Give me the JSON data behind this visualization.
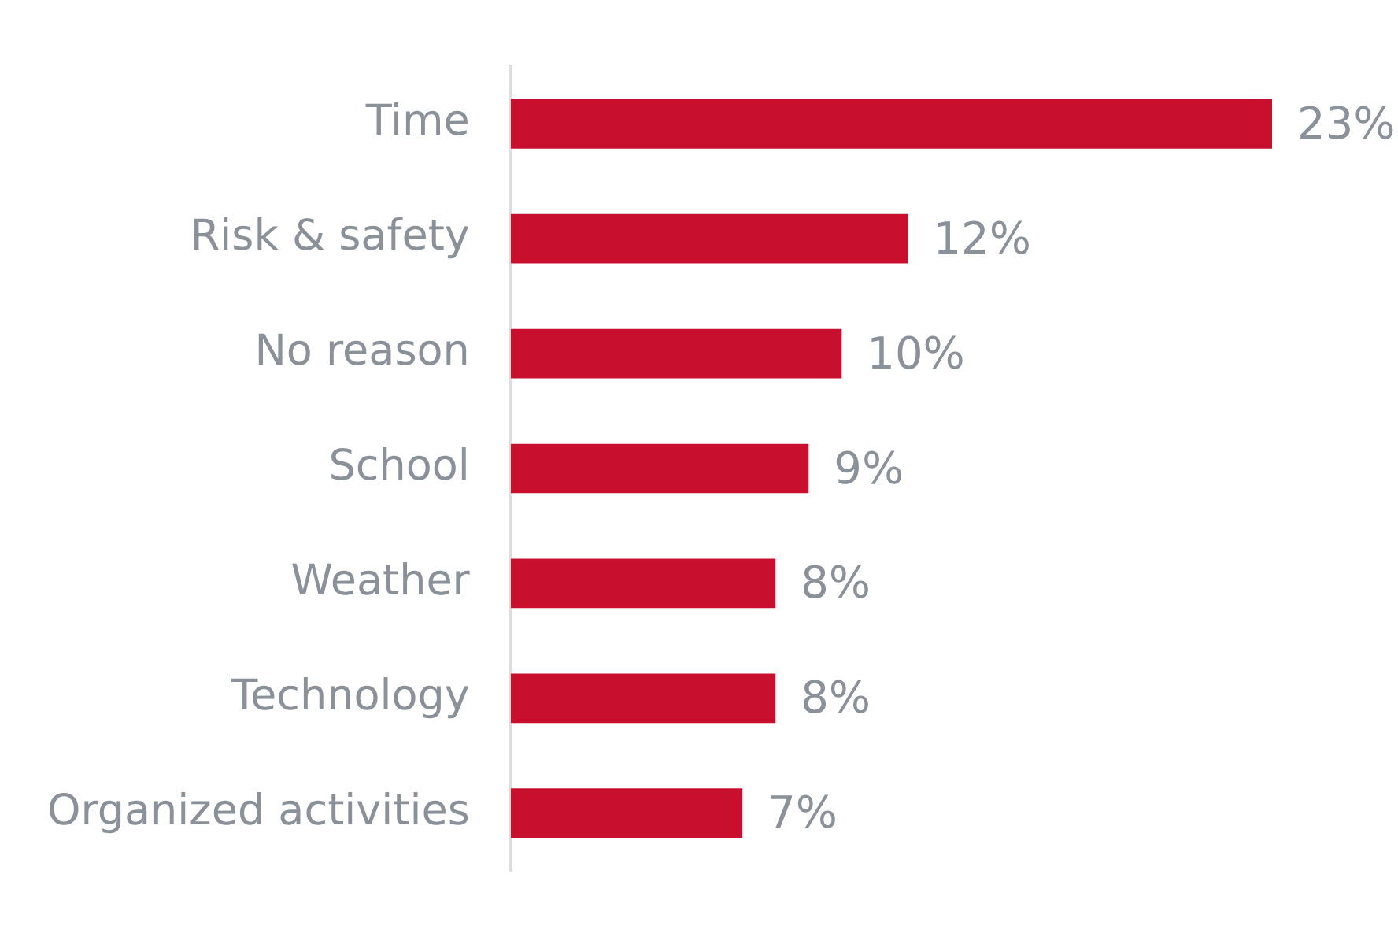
{
  "chart_data": {
    "type": "bar",
    "orientation": "horizontal",
    "categories": [
      "Time",
      "Risk & safety",
      "No reason",
      "School",
      "Weather",
      "Technology",
      "Organized activities"
    ],
    "values": [
      23,
      12,
      10,
      9,
      8,
      8,
      7
    ],
    "value_labels": [
      "23%",
      "12%",
      "10%",
      "9%",
      "8%",
      "8%",
      "7%"
    ],
    "color": "#c8102e",
    "legend": false
  }
}
